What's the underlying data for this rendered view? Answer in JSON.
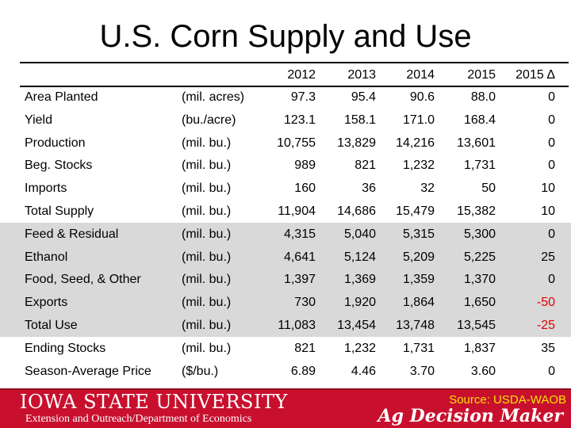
{
  "title": "U.S. Corn Supply and Use",
  "columns": [
    "2012",
    "2013",
    "2014",
    "2015",
    "2015 Δ"
  ],
  "rows": [
    {
      "label": "Area Planted",
      "unit": "(mil. acres)",
      "values": [
        "97.3",
        "95.4",
        "90.6",
        "88.0",
        "0"
      ],
      "shaded": false
    },
    {
      "label": "Yield",
      "unit": "(bu./acre)",
      "values": [
        "123.1",
        "158.1",
        "171.0",
        "168.4",
        "0"
      ],
      "shaded": false
    },
    {
      "label": "Production",
      "unit": "(mil. bu.)",
      "values": [
        "10,755",
        "13,829",
        "14,216",
        "13,601",
        "0"
      ],
      "shaded": false
    },
    {
      "label": "Beg. Stocks",
      "unit": "(mil. bu.)",
      "values": [
        "989",
        "821",
        "1,232",
        "1,731",
        "0"
      ],
      "shaded": false
    },
    {
      "label": "Imports",
      "unit": "(mil. bu.)",
      "values": [
        "160",
        "36",
        "32",
        "50",
        "10"
      ],
      "shaded": false
    },
    {
      "label": "Total Supply",
      "unit": "(mil. bu.)",
      "values": [
        "11,904",
        "14,686",
        "15,479",
        "15,382",
        "10"
      ],
      "shaded": false
    },
    {
      "label": "Feed & Residual",
      "unit": "(mil. bu.)",
      "values": [
        "4,315",
        "5,040",
        "5,315",
        "5,300",
        "0"
      ],
      "shaded": true
    },
    {
      "label": "Ethanol",
      "unit": "(mil. bu.)",
      "values": [
        "4,641",
        "5,124",
        "5,209",
        "5,225",
        "25"
      ],
      "shaded": true
    },
    {
      "label": "Food, Seed, & Other",
      "unit": "(mil. bu.)",
      "values": [
        "1,397",
        "1,369",
        "1,359",
        "1,370",
        "0"
      ],
      "shaded": true
    },
    {
      "label": "Exports",
      "unit": "(mil. bu.)",
      "values": [
        "730",
        "1,920",
        "1,864",
        "1,650",
        "-50"
      ],
      "shaded": true
    },
    {
      "label": "Total Use",
      "unit": "(mil. bu.)",
      "values": [
        "11,083",
        "13,454",
        "13,748",
        "13,545",
        "-25"
      ],
      "shaded": true
    },
    {
      "label": "Ending Stocks",
      "unit": "(mil. bu.)",
      "values": [
        "821",
        "1,232",
        "1,731",
        "1,837",
        "35"
      ],
      "shaded": false
    },
    {
      "label": "Season-Average Price",
      "unit": "($/bu.)",
      "values": [
        "6.89",
        "4.46",
        "3.70",
        "3.60",
        "0"
      ],
      "shaded": false
    }
  ],
  "footer": {
    "university": "IOWA STATE UNIVERSITY",
    "department": "Extension and Outreach/Department of Economics",
    "source": "Source: USDA-WAOB",
    "brand": "Ag Decision Maker"
  },
  "colors": {
    "footer_bg": "#c8102e",
    "shade": "#d9d9d9",
    "negative": "#e00000",
    "source_text": "#f2e300"
  }
}
